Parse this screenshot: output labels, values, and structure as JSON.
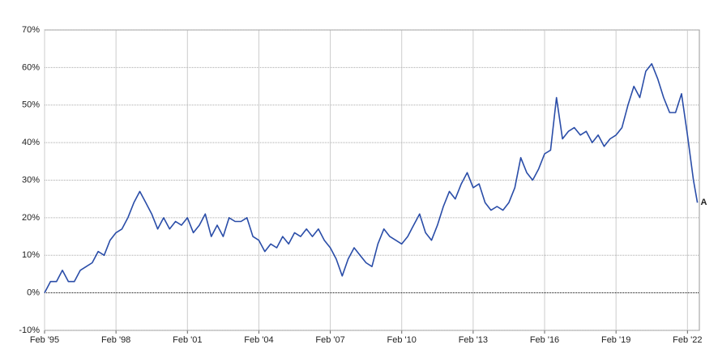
{
  "chart_data": {
    "type": "line",
    "x": [
      "1995-02",
      "1995-05",
      "1995-08",
      "1995-11",
      "1996-02",
      "1996-05",
      "1996-08",
      "1996-11",
      "1997-02",
      "1997-05",
      "1997-08",
      "1997-11",
      "1998-02",
      "1998-05",
      "1998-08",
      "1998-11",
      "1999-02",
      "1999-05",
      "1999-08",
      "1999-11",
      "2000-02",
      "2000-05",
      "2000-08",
      "2000-11",
      "2001-02",
      "2001-05",
      "2001-08",
      "2001-11",
      "2002-02",
      "2002-05",
      "2002-08",
      "2002-11",
      "2003-02",
      "2003-05",
      "2003-08",
      "2003-11",
      "2004-02",
      "2004-05",
      "2004-08",
      "2004-11",
      "2005-02",
      "2005-05",
      "2005-08",
      "2005-11",
      "2006-02",
      "2006-05",
      "2006-08",
      "2006-11",
      "2007-02",
      "2007-05",
      "2007-08",
      "2007-11",
      "2008-02",
      "2008-05",
      "2008-08",
      "2008-11",
      "2009-02",
      "2009-05",
      "2009-08",
      "2009-11",
      "2010-02",
      "2010-05",
      "2010-08",
      "2010-11",
      "2011-02",
      "2011-05",
      "2011-08",
      "2011-11",
      "2012-02",
      "2012-05",
      "2012-08",
      "2012-11",
      "2013-02",
      "2013-05",
      "2013-08",
      "2013-11",
      "2014-02",
      "2014-05",
      "2014-08",
      "2014-11",
      "2015-02",
      "2015-05",
      "2015-08",
      "2015-11",
      "2016-02",
      "2016-05",
      "2016-08",
      "2016-11",
      "2017-02",
      "2017-05",
      "2017-08",
      "2017-11",
      "2018-02",
      "2018-05",
      "2018-08",
      "2018-11",
      "2019-02",
      "2019-05",
      "2019-08",
      "2019-11",
      "2020-02",
      "2020-05",
      "2020-08",
      "2020-11",
      "2021-02",
      "2021-05",
      "2021-08",
      "2021-11",
      "2022-02",
      "2022-05",
      "2022-07"
    ],
    "series": [
      {
        "name": "A",
        "color": "#2a4da8",
        "values": [
          0,
          3,
          3,
          6,
          3,
          3,
          6,
          7,
          8,
          11,
          10,
          14,
          16,
          17,
          20,
          24,
          27,
          24,
          21,
          17,
          20,
          17,
          19,
          18,
          20,
          16,
          18,
          21,
          15,
          18,
          15,
          20,
          19,
          19,
          20,
          15,
          14,
          11,
          13,
          12,
          15,
          13,
          16,
          15,
          17,
          15,
          17,
          14,
          12,
          9,
          4.5,
          9,
          12,
          10,
          8,
          7,
          13,
          17,
          15,
          14,
          13,
          15,
          18,
          21,
          16,
          14,
          18,
          23,
          27,
          25,
          29,
          32,
          28,
          29,
          24,
          22,
          23,
          22,
          24,
          28,
          36,
          32,
          30,
          33,
          37,
          38,
          52,
          41,
          43,
          44,
          42,
          43,
          40,
          42,
          39,
          41,
          42,
          44,
          50,
          55,
          52,
          59,
          61,
          57,
          52,
          48,
          48,
          53,
          42,
          30,
          24
        ]
      }
    ],
    "xlim": [
      "1995-02",
      "2022-08"
    ],
    "xticks": [
      {
        "value": "1995-02",
        "label": "Feb '95"
      },
      {
        "value": "1998-02",
        "label": "Feb '98"
      },
      {
        "value": "2001-02",
        "label": "Feb '01"
      },
      {
        "value": "2004-02",
        "label": "Feb '04"
      },
      {
        "value": "2007-02",
        "label": "Feb '07"
      },
      {
        "value": "2010-02",
        "label": "Feb '10"
      },
      {
        "value": "2013-02",
        "label": "Feb '13"
      },
      {
        "value": "2016-02",
        "label": "Feb '16"
      },
      {
        "value": "2019-02",
        "label": "Feb '19"
      },
      {
        "value": "2022-02",
        "label": "Feb '22"
      }
    ],
    "ylim": [
      -10,
      70
    ],
    "yticks": [
      {
        "value": -10,
        "label": "-10%"
      },
      {
        "value": 0,
        "label": "0%"
      },
      {
        "value": 10,
        "label": "10%"
      },
      {
        "value": 20,
        "label": "20%"
      },
      {
        "value": 30,
        "label": "30%"
      },
      {
        "value": 40,
        "label": "40%"
      },
      {
        "value": 50,
        "label": "50%"
      },
      {
        "value": 60,
        "label": "60%"
      },
      {
        "value": 70,
        "label": "70%"
      }
    ],
    "grid": true
  }
}
